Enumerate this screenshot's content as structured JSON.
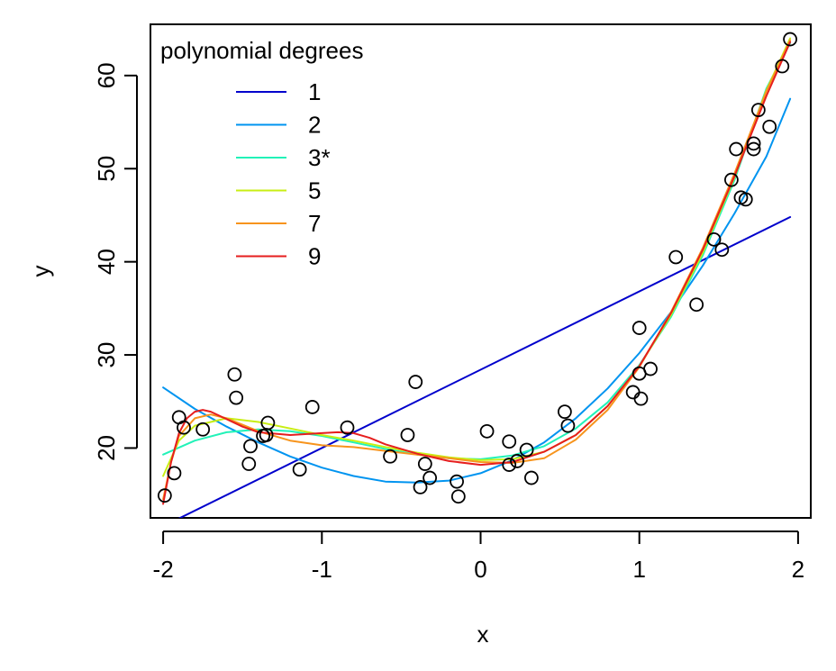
{
  "chart_data": {
    "type": "scatter",
    "title": "",
    "xlabel": "x",
    "ylabel": "y",
    "xlim": [
      -2.08,
      2.08
    ],
    "ylim": [
      12.5,
      65.5
    ],
    "x_ticks": [
      -2,
      -1,
      0,
      1,
      2
    ],
    "x_tick_labels": [
      "-2",
      "-1",
      "0",
      "1",
      "2"
    ],
    "y_ticks": [
      20,
      30,
      40,
      50,
      60
    ],
    "y_tick_labels": [
      "20",
      "30",
      "40",
      "50",
      "60"
    ],
    "grid": false,
    "legend": {
      "title": "polynomial degrees",
      "placement": "top-left"
    },
    "points": [
      [
        -1.99,
        14.9
      ],
      [
        -1.93,
        17.3
      ],
      [
        -1.9,
        23.3
      ],
      [
        -1.87,
        22.2
      ],
      [
        -1.75,
        22.0
      ],
      [
        -1.55,
        27.9
      ],
      [
        -1.54,
        25.4
      ],
      [
        -1.46,
        18.3
      ],
      [
        -1.45,
        20.2
      ],
      [
        -1.37,
        21.3
      ],
      [
        -1.35,
        21.4
      ],
      [
        -1.34,
        22.7
      ],
      [
        -1.14,
        17.7
      ],
      [
        -1.06,
        24.4
      ],
      [
        -0.84,
        22.2
      ],
      [
        -0.57,
        19.1
      ],
      [
        -0.46,
        21.4
      ],
      [
        -0.41,
        27.1
      ],
      [
        -0.38,
        15.8
      ],
      [
        -0.35,
        18.3
      ],
      [
        -0.32,
        16.8
      ],
      [
        -0.15,
        16.4
      ],
      [
        -0.14,
        14.8
      ],
      [
        0.04,
        21.8
      ],
      [
        0.18,
        20.7
      ],
      [
        0.18,
        18.2
      ],
      [
        0.23,
        18.6
      ],
      [
        0.29,
        19.8
      ],
      [
        0.32,
        16.8
      ],
      [
        0.53,
        23.9
      ],
      [
        0.55,
        22.4
      ],
      [
        0.96,
        26.0
      ],
      [
        1.0,
        28.0
      ],
      [
        1.0,
        32.9
      ],
      [
        1.01,
        25.3
      ],
      [
        1.07,
        28.5
      ],
      [
        1.23,
        40.5
      ],
      [
        1.36,
        35.4
      ],
      [
        1.47,
        42.4
      ],
      [
        1.52,
        41.3
      ],
      [
        1.58,
        48.8
      ],
      [
        1.61,
        52.1
      ],
      [
        1.64,
        46.9
      ],
      [
        1.67,
        46.7
      ],
      [
        1.72,
        52.7
      ],
      [
        1.72,
        52.1
      ],
      [
        1.75,
        56.3
      ],
      [
        1.82,
        54.5
      ],
      [
        1.9,
        61.0
      ],
      [
        1.95,
        63.9
      ]
    ],
    "series": [
      {
        "name": "1",
        "color": "#0000cc",
        "x": [
          -2,
          1.95
        ],
        "y": [
          11.6,
          44.8
        ]
      },
      {
        "name": "2",
        "color": "#0094f0",
        "x": [
          -2.0,
          -1.8,
          -1.6,
          -1.4,
          -1.2,
          -1.0,
          -0.8,
          -0.6,
          -0.4,
          -0.2,
          0.0,
          0.2,
          0.4,
          0.6,
          0.8,
          1.0,
          1.2,
          1.4,
          1.6,
          1.8,
          1.95
        ],
        "y": [
          26.5,
          24.2,
          22.3,
          20.6,
          19.1,
          17.9,
          17.0,
          16.4,
          16.3,
          16.5,
          17.3,
          18.7,
          20.6,
          23.2,
          26.4,
          30.2,
          34.6,
          39.6,
          45.2,
          51.3,
          57.5
        ]
      },
      {
        "name": "3*",
        "color": "#22f2b8",
        "x": [
          -2.0,
          -1.8,
          -1.6,
          -1.4,
          -1.2,
          -1.0,
          -0.8,
          -0.6,
          -0.4,
          -0.2,
          0.0,
          0.2,
          0.4,
          0.6,
          0.8,
          1.0,
          1.2,
          1.4,
          1.6,
          1.8,
          1.95
        ],
        "y": [
          19.3,
          20.8,
          21.7,
          22.0,
          21.8,
          21.3,
          20.6,
          19.9,
          19.3,
          18.9,
          18.8,
          19.2,
          20.2,
          22.1,
          24.9,
          28.9,
          34.1,
          40.7,
          48.8,
          58.6,
          63.5
        ]
      },
      {
        "name": "5",
        "color": "#c8ee14",
        "x": [
          -2.0,
          -1.9,
          -1.8,
          -1.6,
          -1.4,
          -1.2,
          -1.0,
          -0.8,
          -0.6,
          -0.4,
          -0.2,
          0.0,
          0.2,
          0.4,
          0.6,
          0.8,
          1.0,
          1.2,
          1.4,
          1.6,
          1.8,
          1.95
        ],
        "y": [
          17.0,
          20.8,
          22.4,
          23.2,
          22.8,
          22.1,
          21.4,
          20.8,
          20.1,
          19.5,
          19.0,
          18.7,
          18.8,
          19.6,
          21.4,
          24.5,
          28.8,
          34.3,
          41.0,
          49.1,
          58.4,
          64.0
        ]
      },
      {
        "name": "7",
        "color": "#f7941d",
        "x": [
          -2.0,
          -1.95,
          -1.9,
          -1.8,
          -1.7,
          -1.6,
          -1.4,
          -1.2,
          -1.0,
          -0.8,
          -0.6,
          -0.4,
          -0.2,
          0.0,
          0.2,
          0.4,
          0.6,
          0.8,
          1.0,
          1.2,
          1.4,
          1.6,
          1.8,
          1.95
        ],
        "y": [
          14.5,
          18.5,
          21.3,
          23.2,
          23.6,
          23.2,
          21.8,
          20.8,
          20.3,
          20.1,
          19.7,
          19.3,
          18.9,
          18.5,
          18.4,
          18.9,
          20.9,
          24.1,
          28.7,
          34.6,
          41.5,
          49.5,
          58.3,
          63.8
        ]
      },
      {
        "name": "9",
        "color": "#e61e1e",
        "x": [
          -2.0,
          -1.95,
          -1.9,
          -1.85,
          -1.8,
          -1.75,
          -1.7,
          -1.6,
          -1.5,
          -1.4,
          -1.2,
          -1.0,
          -0.9,
          -0.8,
          -0.7,
          -0.6,
          -0.4,
          -0.2,
          0.0,
          0.2,
          0.4,
          0.6,
          0.8,
          1.0,
          1.2,
          1.4,
          1.6,
          1.8,
          1.95
        ],
        "y": [
          14.0,
          18.5,
          21.6,
          23.2,
          23.9,
          24.1,
          23.9,
          23.1,
          22.3,
          21.7,
          21.4,
          21.6,
          21.7,
          21.6,
          21.1,
          20.4,
          19.4,
          18.6,
          18.2,
          18.5,
          19.6,
          21.4,
          24.5,
          28.8,
          34.5,
          41.3,
          49.2,
          57.8,
          63.6
        ]
      }
    ]
  }
}
